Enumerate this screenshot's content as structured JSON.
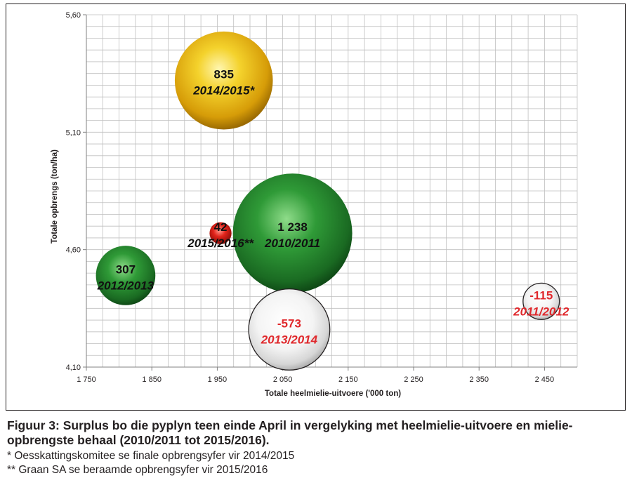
{
  "chart_data": {
    "type": "scatter",
    "xlabel": "Totale heelmielie-uitvoere ('000 ton)",
    "ylabel": "Totale opbrengs  (ton/ha)",
    "xlim": [
      1750,
      2500
    ],
    "ylim": [
      4.1,
      5.6
    ],
    "xticks": [
      "1 750",
      "1 850",
      "1 950",
      "2 050",
      "2 150",
      "2 250",
      "2 350",
      "2 450"
    ],
    "xtick_values": [
      1750,
      1850,
      1950,
      2050,
      2150,
      2250,
      2350,
      2450
    ],
    "yticks": [
      "4,10",
      "4,60",
      "5,10",
      "5,60"
    ],
    "ytick_values": [
      4.1,
      4.6,
      5.1,
      5.6
    ],
    "grid": true,
    "bubbles": [
      {
        "season": "2014/2015*",
        "value": "835",
        "size": 835,
        "x": 1960,
        "y": 5.32,
        "color": "gold",
        "text_color": "#111111"
      },
      {
        "season": "2015/2016**",
        "value": "42",
        "size": 42,
        "x": 1955,
        "y": 4.67,
        "color": "red",
        "text_color": "#111111"
      },
      {
        "season": "2010/2011",
        "value": "1 238",
        "size": 1238,
        "x": 2065,
        "y": 4.67,
        "color": "green",
        "text_color": "#111111"
      },
      {
        "season": "2012/2013",
        "value": "307",
        "size": 307,
        "x": 1810,
        "y": 4.49,
        "color": "green",
        "text_color": "#111111"
      },
      {
        "season": "2013/2014",
        "value": "-573",
        "size": 573,
        "x": 2060,
        "y": 4.26,
        "color": "white",
        "text_color": "#e0282c"
      },
      {
        "season": "2011/2012",
        "value": "-115",
        "size": 115,
        "x": 2445,
        "y": 4.38,
        "color": "white",
        "text_color": "#e0282c"
      }
    ]
  },
  "caption": {
    "title": "Figuur 3: Surplus bo die pyplyn teen einde April in vergelyking met heelmielie-uitvoere en mielie-opbrengste behaal (2010/2011 tot 2015/2016).",
    "note1": "* Oesskattingskomitee se finale opbrengsyfer vir 2014/2015",
    "note2": "** Graan SA se beraamde opbrengsyfer vir 2015/2016"
  }
}
